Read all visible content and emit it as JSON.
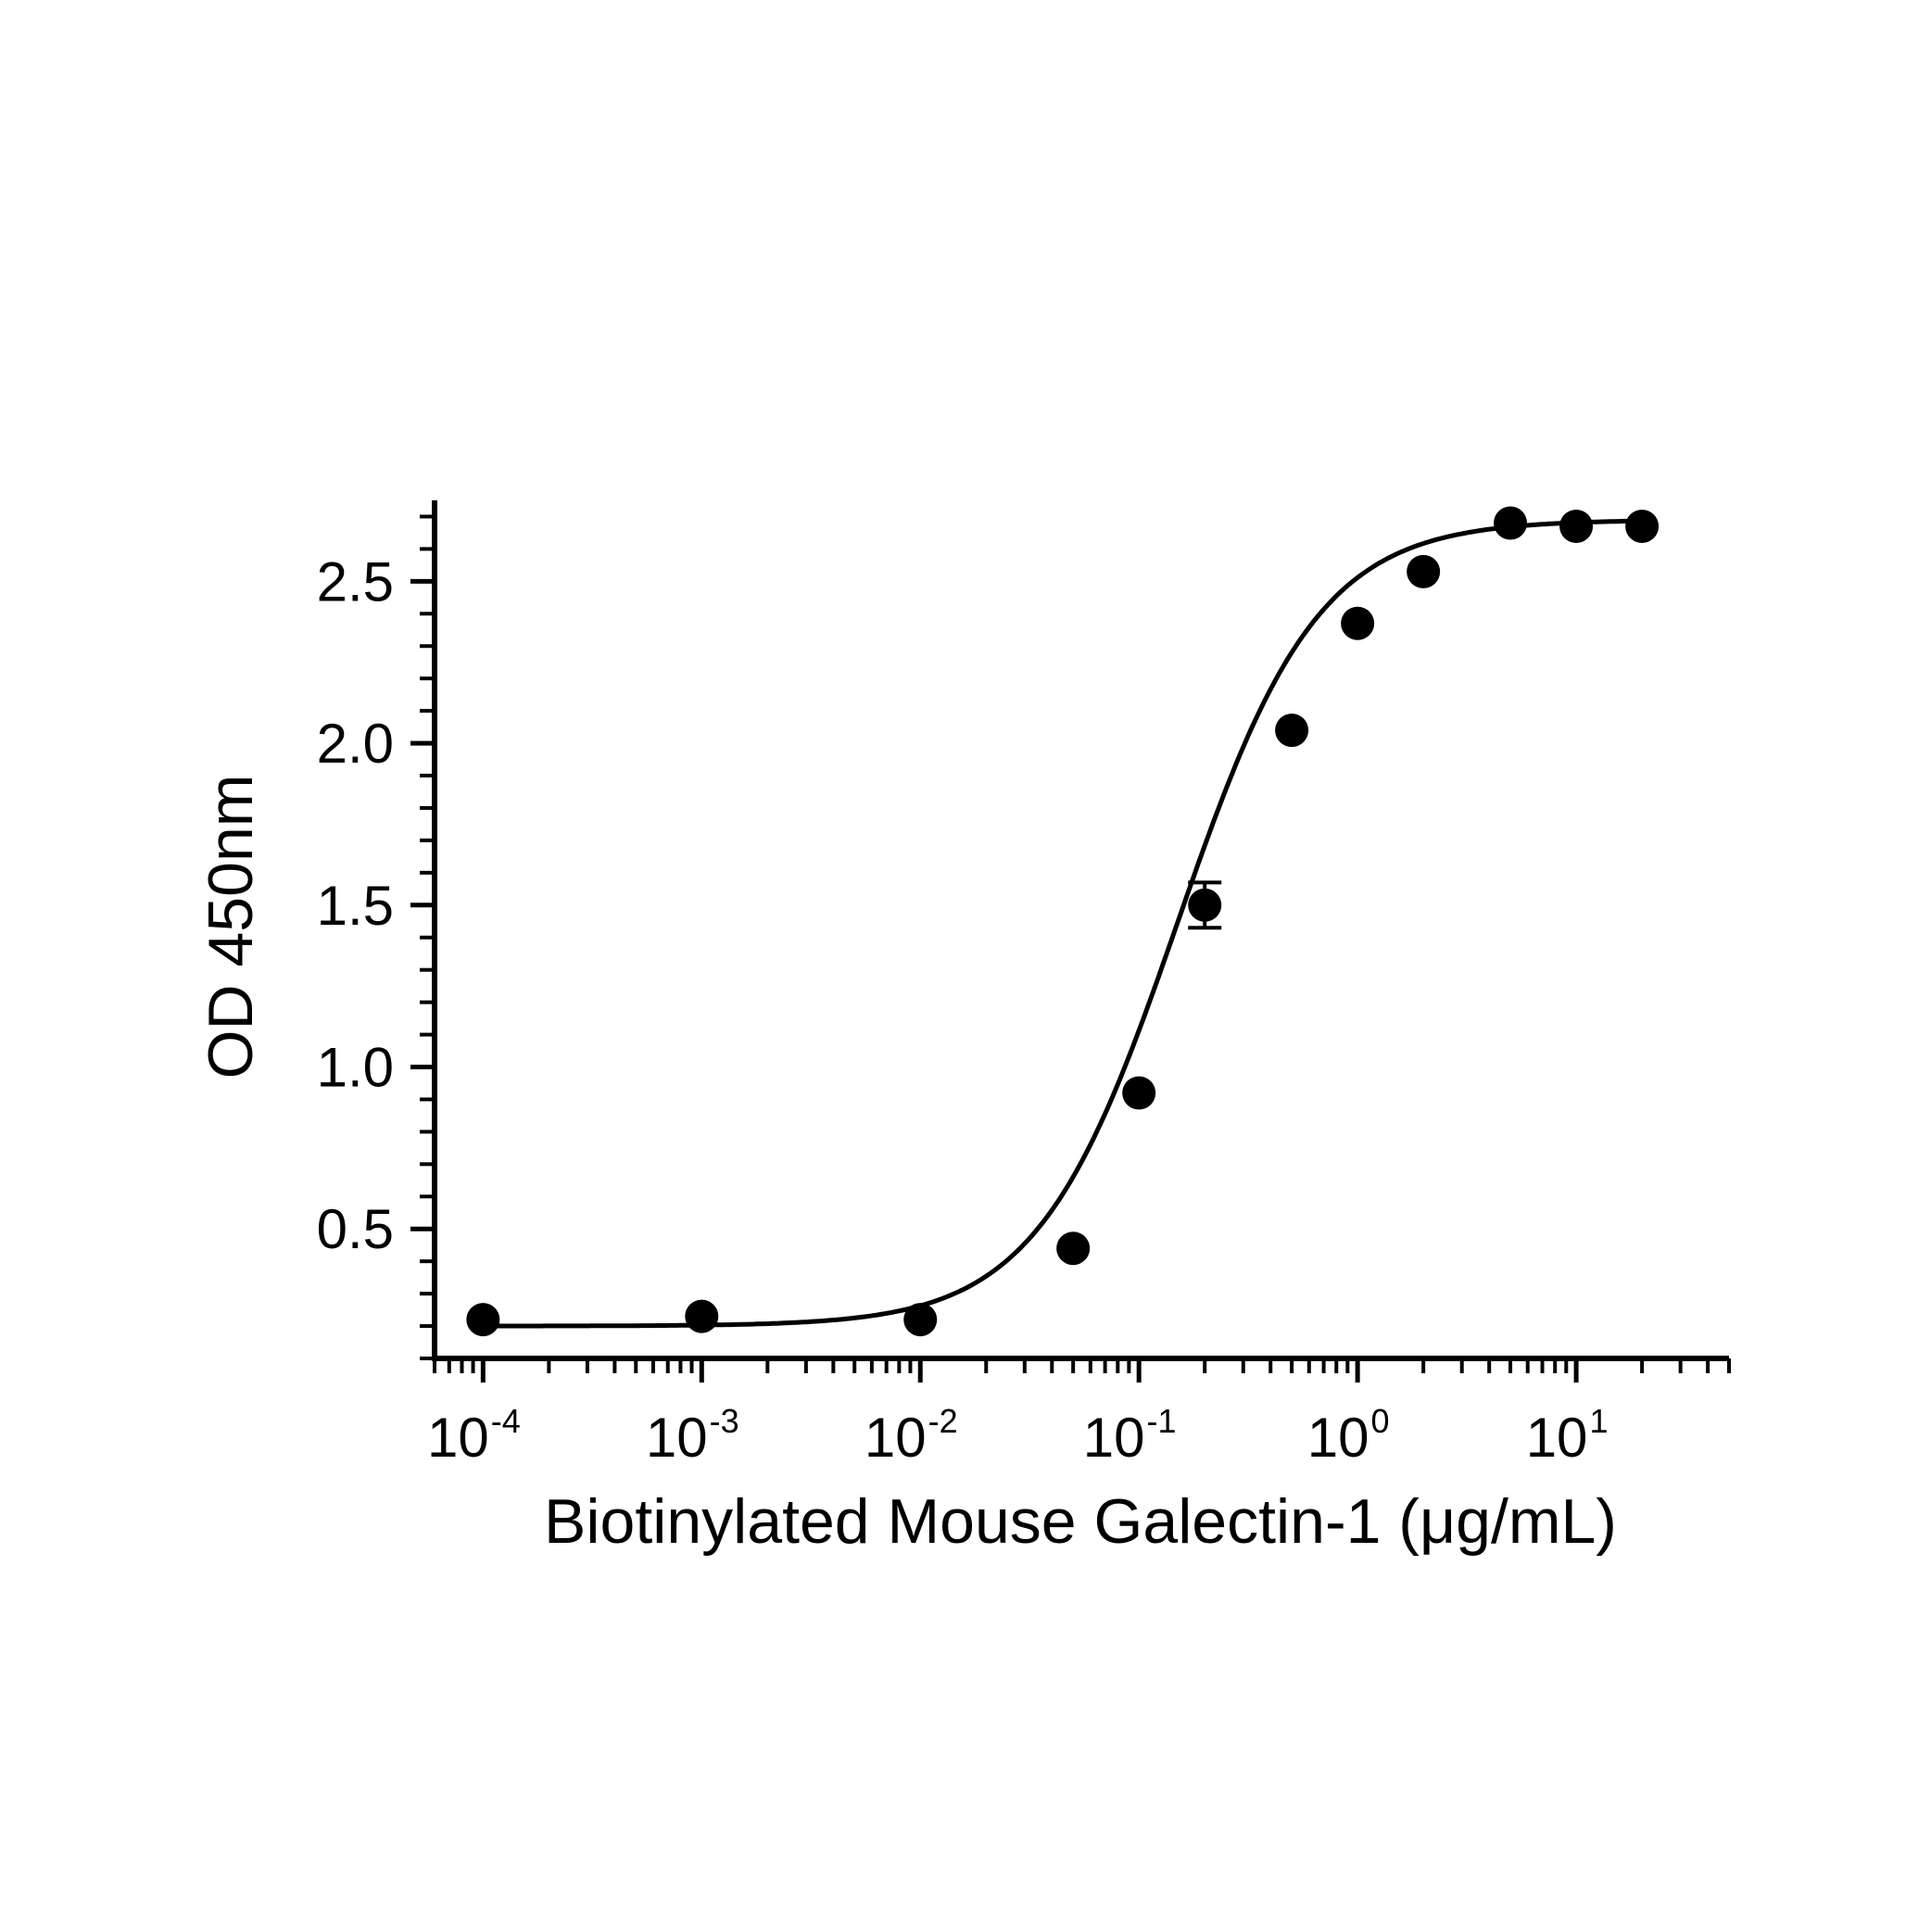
{
  "chart_data": {
    "type": "scatter",
    "title": "",
    "xlabel": "Biotinylated Mouse Galectin-1 (μg/mL)",
    "ylabel": "OD 450nm",
    "x_scale": "log",
    "xlim": [
      6e-05,
      50
    ],
    "ylim": [
      0.1,
      2.75
    ],
    "x_ticks": [
      {
        "base": "10",
        "exp": "-4",
        "value": 0.0001
      },
      {
        "base": "10",
        "exp": "-3",
        "value": 0.001
      },
      {
        "base": "10",
        "exp": "-2",
        "value": 0.01
      },
      {
        "base": "10",
        "exp": "-1",
        "value": 0.1
      },
      {
        "base": "10",
        "exp": "0",
        "value": 1
      },
      {
        "base": "10",
        "exp": "1",
        "value": 10
      }
    ],
    "y_ticks": [
      {
        "label": "0.5",
        "value": 0.5
      },
      {
        "label": "1.0",
        "value": 1.0
      },
      {
        "label": "1.5",
        "value": 1.5
      },
      {
        "label": "2.0",
        "value": 2.0
      },
      {
        "label": "2.5",
        "value": 2.5
      }
    ],
    "grid": false,
    "legend": "none",
    "color": "#000000",
    "points": [
      {
        "x": 0.0001,
        "y": 0.22
      },
      {
        "x": 0.001,
        "y": 0.23
      },
      {
        "x": 0.01,
        "y": 0.22
      },
      {
        "x": 0.05,
        "y": 0.44
      },
      {
        "x": 0.1,
        "y": 0.92
      },
      {
        "x": 0.2,
        "y": 1.5,
        "err": 0.07
      },
      {
        "x": 0.5,
        "y": 2.04
      },
      {
        "x": 1,
        "y": 2.37
      },
      {
        "x": 2,
        "y": 2.53
      },
      {
        "x": 5,
        "y": 2.68
      },
      {
        "x": 10,
        "y": 2.67
      },
      {
        "x": 20,
        "y": 2.67
      }
    ],
    "fit": {
      "model": "4PL",
      "bottom": 0.2,
      "top": 2.69,
      "ec50": 0.15,
      "hill": 1.35
    }
  }
}
